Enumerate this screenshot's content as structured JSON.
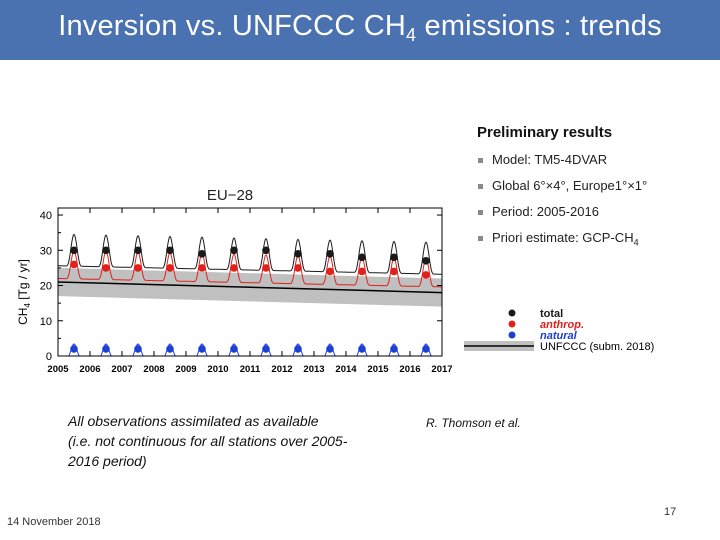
{
  "slide": {
    "title_main": "Inversion vs. UNFCCC CH",
    "title_sub": "4",
    "title_rest": " emissions : trends",
    "results_title": "Preliminary results",
    "bullets": [
      "Model: TM5-4DVAR",
      "Global 6°×4°, Europe1°×1°",
      "Period: 2005-2016"
    ],
    "bullet_priori": "Priori estimate: GCP-CH",
    "bullet_priori_sub": "4",
    "note_lines": [
      "All observations assimilated as available",
      "(i.e. not continuous for all stations over 2005-",
      "2016 period)"
    ],
    "credit": "R. Thomson et al.",
    "date": "14 November 2018",
    "page_number": "17"
  },
  "chart_data": {
    "type": "line",
    "title": "EU−28",
    "ylabel_main": "CH",
    "ylabel_sub": "4",
    "ylabel_unit": " [Tg / yr]",
    "xlim": [
      2005,
      2017
    ],
    "ylim": [
      0,
      42
    ],
    "x_ticks": [
      2005,
      2006,
      2007,
      2008,
      2009,
      2010,
      2011,
      2012,
      2013,
      2014,
      2015,
      2016,
      2017
    ],
    "y_ticks": [
      0,
      10,
      20,
      30,
      40
    ],
    "series": [
      {
        "name": "total",
        "color": "#1a1a1a",
        "style": "seasonal line + annual dots",
        "annual": [
          {
            "x": 2005.5,
            "y": 30
          },
          {
            "x": 2006.5,
            "y": 30
          },
          {
            "x": 2007.5,
            "y": 30
          },
          {
            "x": 2008.5,
            "y": 30
          },
          {
            "x": 2009.5,
            "y": 29
          },
          {
            "x": 2010.5,
            "y": 30
          },
          {
            "x": 2011.5,
            "y": 30
          },
          {
            "x": 2012.5,
            "y": 29
          },
          {
            "x": 2013.5,
            "y": 29
          },
          {
            "x": 2014.5,
            "y": 28
          },
          {
            "x": 2015.5,
            "y": 28
          },
          {
            "x": 2016.5,
            "y": 27
          }
        ],
        "seasonal_base": 28,
        "seasonal_amp": 9
      },
      {
        "name": "anthrop.",
        "color": "#e0201b",
        "style": "seasonal line + annual dots",
        "annual": [
          {
            "x": 2005.5,
            "y": 26
          },
          {
            "x": 2006.5,
            "y": 25
          },
          {
            "x": 2007.5,
            "y": 25
          },
          {
            "x": 2008.5,
            "y": 25
          },
          {
            "x": 2009.5,
            "y": 25
          },
          {
            "x": 2010.5,
            "y": 25
          },
          {
            "x": 2011.5,
            "y": 25
          },
          {
            "x": 2012.5,
            "y": 25
          },
          {
            "x": 2013.5,
            "y": 24
          },
          {
            "x": 2014.5,
            "y": 24
          },
          {
            "x": 2015.5,
            "y": 24
          },
          {
            "x": 2016.5,
            "y": 23
          }
        ],
        "seasonal_base": 24,
        "seasonal_amp": 8
      },
      {
        "name": "natural",
        "color": "#1c3fd4",
        "style": "seasonal line + annual dots",
        "annual": [
          {
            "x": 2005.5,
            "y": 2
          },
          {
            "x": 2006.5,
            "y": 2
          },
          {
            "x": 2007.5,
            "y": 2
          },
          {
            "x": 2008.5,
            "y": 2
          },
          {
            "x": 2009.5,
            "y": 2
          },
          {
            "x": 2010.5,
            "y": 2
          },
          {
            "x": 2011.5,
            "y": 2
          },
          {
            "x": 2012.5,
            "y": 2
          },
          {
            "x": 2013.5,
            "y": 2
          },
          {
            "x": 2014.5,
            "y": 2
          },
          {
            "x": 2015.5,
            "y": 2
          },
          {
            "x": 2016.5,
            "y": 2
          }
        ],
        "seasonal_base": 1,
        "seasonal_amp": 4
      },
      {
        "name": "UNFCCC",
        "color": "#000000",
        "band_color": "#c0c0c0",
        "style": "line with uncertainty band",
        "points": [
          {
            "x": 2005,
            "y": 21
          },
          {
            "x": 2017,
            "y": 18
          }
        ],
        "band_halfwidth": 4
      }
    ],
    "legend": {
      "placement": "below-right",
      "entries": [
        {
          "label": "total",
          "color": "#1a1a1a",
          "marker": "dot"
        },
        {
          "label": "anthrop.",
          "color": "#e0201b",
          "marker": "dot"
        },
        {
          "label": "natural",
          "color": "#1c3fd4",
          "marker": "dot"
        },
        {
          "label": "UNFCCC  (subm. 2018)",
          "color": "#000000",
          "marker": "band"
        }
      ]
    }
  }
}
